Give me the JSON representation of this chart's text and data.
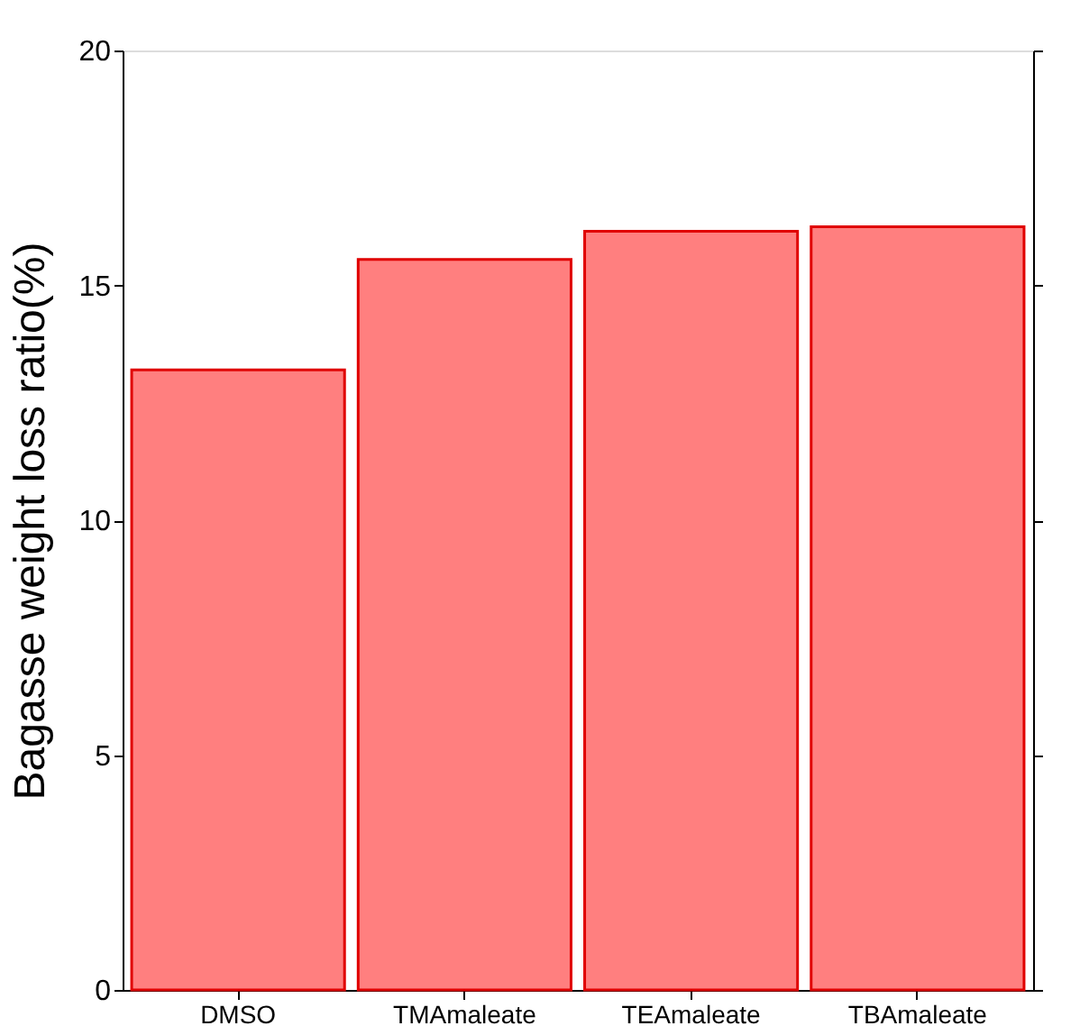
{
  "chart_data": {
    "type": "bar",
    "ylabel": "Bagasse weight loss ratio(%)",
    "categories": [
      "DMSO",
      "TMAmaleate",
      "TEAmaleate",
      "TBAmaleate"
    ],
    "values": [
      13.2,
      15.55,
      16.15,
      16.25
    ],
    "color": "#ff7f7f",
    "ylim": [
      0,
      20
    ],
    "yticks": [
      0,
      5,
      10,
      15,
      20
    ],
    "grid": false
  }
}
